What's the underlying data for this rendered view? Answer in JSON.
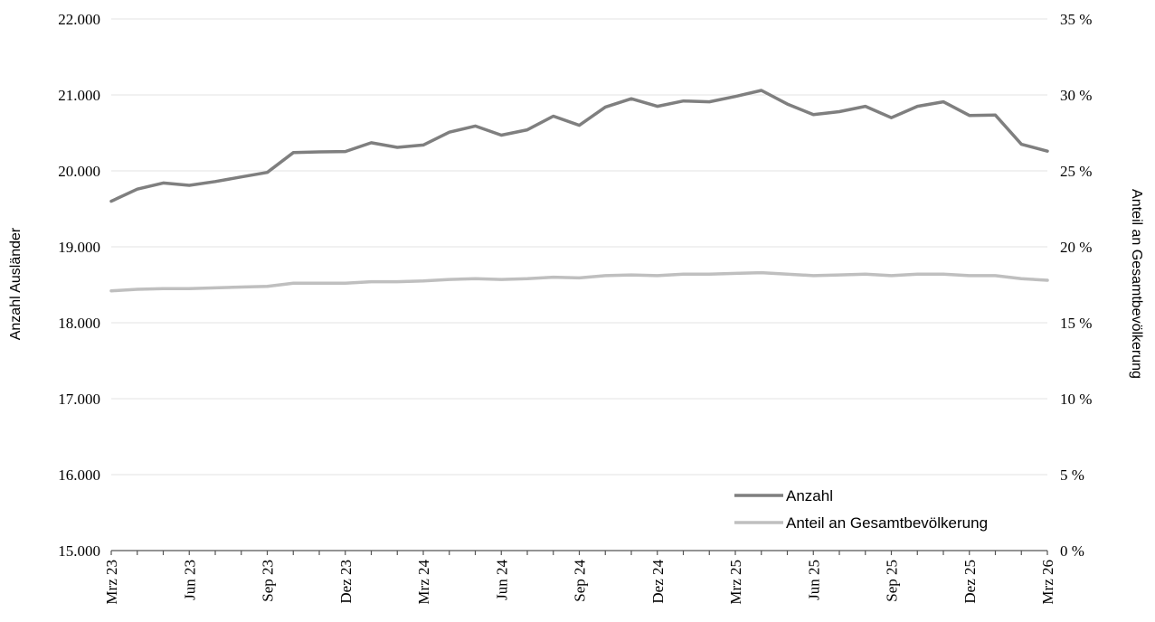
{
  "chart_data": {
    "type": "line",
    "xlabel": "",
    "ylabel": "Anzahl Ausländer",
    "y2label": "Anteil an Gesamtbevölkerung",
    "ylim": [
      15000,
      22000
    ],
    "y2lim": [
      0,
      35
    ],
    "grid": true,
    "legend_position": "bottom-right",
    "y_ticks": [
      "15.000",
      "16.000",
      "17.000",
      "18.000",
      "19.000",
      "20.000",
      "21.000",
      "22.000"
    ],
    "y2_ticks": [
      "0 %",
      "5 %",
      "10 %",
      "15 %",
      "20 %",
      "25 %",
      "30 %",
      "35 %"
    ],
    "x_tick_labels": [
      "Mrz 23",
      "Jun 23",
      "Sep 23",
      "Dez 23",
      "Mrz 24",
      "Jun 24",
      "Sep 24",
      "Dez 24",
      "Mrz 25",
      "Jun 25",
      "Sep 25",
      "Dez 25",
      "Mrz 26"
    ],
    "x": [
      "Mrz 23",
      "Apr 23",
      "Mai 23",
      "Jun 23",
      "Jul 23",
      "Aug 23",
      "Sep 23",
      "Okt 23",
      "Nov 23",
      "Dez 23",
      "Jan 24",
      "Feb 24",
      "Mrz 24",
      "Apr 24",
      "Mai 24",
      "Jun 24",
      "Jul 24",
      "Aug 24",
      "Sep 24",
      "Okt 24",
      "Nov 24",
      "Dez 24",
      "Jan 25",
      "Feb 25",
      "Mrz 25",
      "Apr 25",
      "Mai 25",
      "Jun 25",
      "Jul 25",
      "Aug 25",
      "Sep 25",
      "Okt 25",
      "Nov 25",
      "Dez 25",
      "Jan 26",
      "Feb 26",
      "Mrz 26"
    ],
    "series": [
      {
        "name": "Anzahl",
        "axis": "left",
        "color": "#7f7f7f",
        "values": [
          19600,
          19760,
          19840,
          19810,
          19860,
          19920,
          19980,
          20240,
          20250,
          20255,
          20370,
          20310,
          20340,
          20510,
          20590,
          20470,
          20540,
          20720,
          20600,
          20840,
          20950,
          20850,
          20920,
          20910,
          20980,
          21060,
          20880,
          20740,
          20780,
          20850,
          20700,
          20850,
          20910,
          20730,
          20735,
          20350,
          20260
        ]
      },
      {
        "name": "Anteil an Gesamtbevölkerung",
        "axis": "right",
        "color": "#bfbfbf",
        "values": [
          17.1,
          17.2,
          17.25,
          17.25,
          17.3,
          17.35,
          17.4,
          17.6,
          17.6,
          17.6,
          17.7,
          17.7,
          17.75,
          17.85,
          17.9,
          17.85,
          17.9,
          18.0,
          17.95,
          18.1,
          18.15,
          18.1,
          18.2,
          18.2,
          18.25,
          18.3,
          18.2,
          18.1,
          18.15,
          18.2,
          18.1,
          18.2,
          18.2,
          18.1,
          18.1,
          17.9,
          17.8
        ]
      }
    ]
  }
}
